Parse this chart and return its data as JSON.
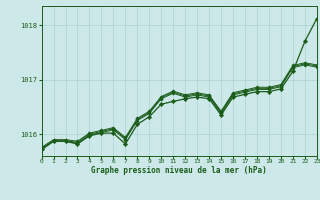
{
  "background_color": "#cce8e8",
  "grid_color": "#add0d0",
  "line_color": "#1a5c1a",
  "xlim": [
    0,
    23
  ],
  "ylim": [
    1015.6,
    1018.35
  ],
  "yticks": [
    1016,
    1017,
    1018
  ],
  "xticks": [
    0,
    1,
    2,
    3,
    4,
    5,
    6,
    7,
    8,
    9,
    10,
    11,
    12,
    13,
    14,
    15,
    16,
    17,
    18,
    19,
    20,
    21,
    22,
    23
  ],
  "xlabel": "Graphe pression niveau de la mer (hPa)",
  "series": [
    [
      1015.72,
      1015.87,
      1015.87,
      1015.82,
      1015.97,
      1016.02,
      1016.02,
      1015.82,
      1016.22,
      1016.32,
      1016.62,
      1016.62,
      1016.62,
      1016.62,
      1016.62,
      1016.32,
      1016.67,
      1016.72,
      1016.77,
      1016.77,
      1016.82,
      1017.17,
      1017.72,
      1018.17
    ],
    [
      1015.72,
      1015.87,
      1015.87,
      1015.82,
      1015.97,
      1016.02,
      1016.07,
      1015.87,
      1016.25,
      1016.37,
      1016.65,
      1016.75,
      1016.65,
      1016.7,
      1016.65,
      1016.35,
      1016.7,
      1016.75,
      1016.8,
      1016.8,
      1016.85,
      1017.2,
      1017.28,
      1017.22
    ],
    [
      1015.72,
      1015.87,
      1015.87,
      1015.82,
      1015.97,
      1016.02,
      1016.07,
      1015.87,
      1016.25,
      1016.37,
      1016.65,
      1016.75,
      1016.65,
      1016.7,
      1016.65,
      1016.35,
      1016.72,
      1016.77,
      1016.82,
      1016.82,
      1016.87,
      1017.22,
      1017.3,
      1017.25
    ],
    [
      1015.72,
      1015.87,
      1015.87,
      1015.82,
      1015.97,
      1016.02,
      1016.1,
      1015.9,
      1016.28,
      1016.4,
      1016.67,
      1016.77,
      1016.67,
      1016.72,
      1016.67,
      1016.38,
      1016.75,
      1016.8,
      1016.85,
      1016.85,
      1016.9,
      1017.25,
      1017.33,
      1017.28
    ]
  ],
  "series_long": [
    1015.72,
    1015.87,
    1015.87,
    1015.82,
    1015.97,
    1016.02,
    1016.02,
    1015.82,
    1016.22,
    1016.32,
    1016.62,
    1016.62,
    1016.62,
    1016.62,
    1016.62,
    1016.32,
    1016.67,
    1016.72,
    1016.77,
    1016.77,
    1016.82,
    1017.17,
    1017.72,
    1018.17
  ]
}
